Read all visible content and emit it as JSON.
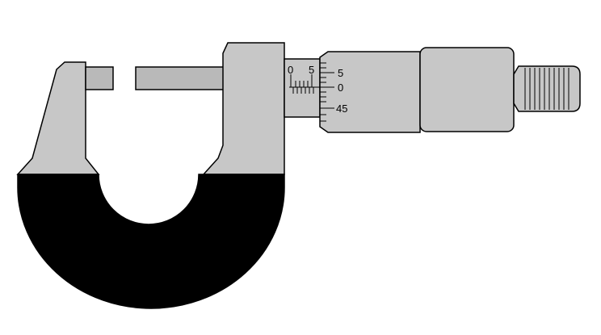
{
  "diagram": {
    "subject": "outside-micrometer",
    "sleeve_scale": {
      "labels": [
        "0",
        "5"
      ]
    },
    "thimble_scale": {
      "labels": [
        "5",
        "0",
        "45"
      ]
    },
    "colors": {
      "metal": "#c7c7c7",
      "spindle": "#b9b9b9",
      "outline": "#000000",
      "frame_grip": "#000000",
      "background": "#ffffff"
    }
  }
}
